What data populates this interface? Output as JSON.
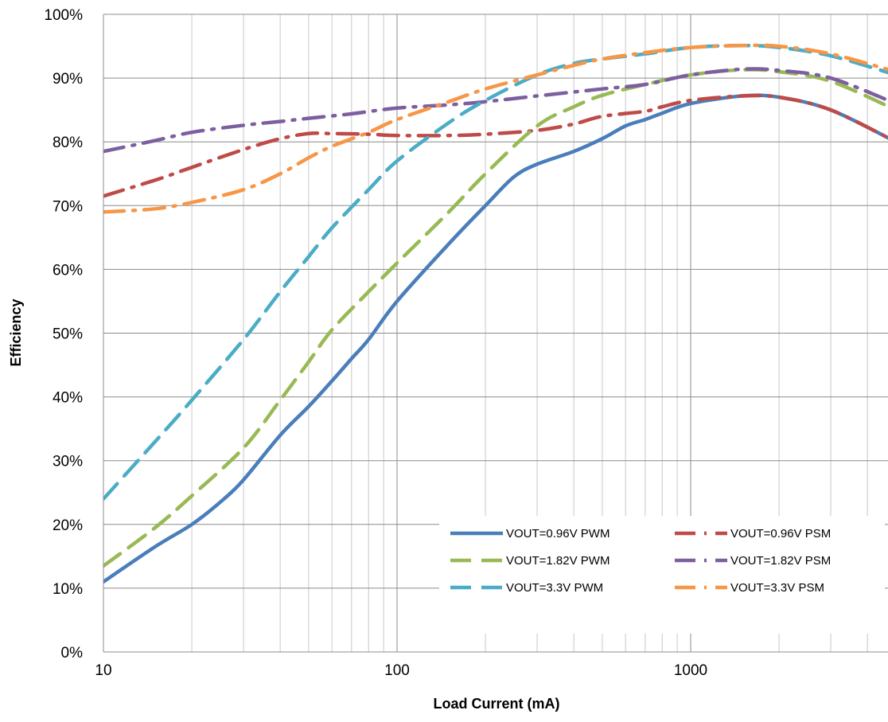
{
  "chart_data": {
    "type": "line",
    "title": "",
    "xlabel": "Load Current (mA)",
    "ylabel": "Efficiency",
    "x_scale": "log",
    "xlim": [
      10,
      5000
    ],
    "ylim": [
      0,
      100
    ],
    "grid": true,
    "legend_position": "bottom-right",
    "x_ticks": [
      "10",
      "100",
      "1000"
    ],
    "y_ticks": [
      "0%",
      "10%",
      "20%",
      "30%",
      "40%",
      "50%",
      "60%",
      "70%",
      "80%",
      "90%",
      "100%"
    ],
    "series": [
      {
        "name": "VOUT=0.96V PWM",
        "color": "#4a7ebb",
        "style": "solid",
        "x": [
          10,
          15,
          20,
          25,
          30,
          40,
          50,
          60,
          70,
          80,
          100,
          150,
          200,
          250,
          300,
          400,
          500,
          600,
          700,
          800,
          1000,
          1500,
          2000,
          3000,
          5000
        ],
        "y": [
          11,
          16.5,
          20,
          23.5,
          27,
          34,
          38.5,
          42.5,
          46,
          49,
          55,
          64,
          70,
          74.5,
          76.5,
          78.5,
          80.5,
          82.5,
          83.5,
          84.5,
          86,
          87.2,
          87,
          85,
          80
        ]
      },
      {
        "name": "VOUT=0.96V PSM",
        "color": "#be4b48",
        "style": "dash-dot",
        "x": [
          10,
          15,
          20,
          30,
          40,
          50,
          60,
          80,
          100,
          150,
          200,
          300,
          400,
          500,
          700,
          800,
          1000,
          1500,
          2000,
          3000,
          5000
        ],
        "y": [
          71.5,
          74,
          76,
          78.8,
          80.5,
          81.3,
          81.3,
          81.2,
          81,
          81,
          81.2,
          81.8,
          82.8,
          84,
          84.8,
          85.5,
          86.5,
          87.2,
          87,
          85,
          80
        ]
      },
      {
        "name": "VOUT=1.82V PWM",
        "color": "#98b954",
        "style": "dash",
        "x": [
          10,
          15,
          20,
          30,
          40,
          50,
          60,
          80,
          100,
          150,
          200,
          300,
          400,
          500,
          700,
          1000,
          1500,
          2000,
          3000,
          5000
        ],
        "y": [
          13.5,
          19.5,
          24.5,
          32,
          39.5,
          45.5,
          50.5,
          56.5,
          61,
          69,
          75,
          82.5,
          85.5,
          87.3,
          89,
          90.5,
          91.3,
          91,
          89.5,
          85
        ]
      },
      {
        "name": "VOUT=1.82V PSM",
        "color": "#7d5fa0",
        "style": "dash-dot",
        "x": [
          10,
          15,
          20,
          30,
          40,
          50,
          70,
          100,
          150,
          200,
          300,
          500,
          700,
          1000,
          1500,
          2000,
          3000,
          5000
        ],
        "y": [
          78.5,
          80.2,
          81.5,
          82.6,
          83.2,
          83.7,
          84.4,
          85.3,
          85.8,
          86.3,
          87.2,
          88.3,
          89,
          90.5,
          91.4,
          91.2,
          90,
          86
        ]
      },
      {
        "name": "VOUT=3.3V PWM",
        "color": "#4bacc6",
        "style": "dash",
        "x": [
          10,
          15,
          20,
          30,
          40,
          50,
          60,
          80,
          100,
          150,
          200,
          300,
          400,
          500,
          700,
          1000,
          1500,
          2000,
          3000,
          5000
        ],
        "y": [
          24,
          33,
          39.5,
          49,
          56.5,
          62,
          66.5,
          72.5,
          77,
          83,
          86.5,
          90.5,
          92.3,
          93,
          93.8,
          94.8,
          95.1,
          94.8,
          93.5,
          90.5
        ]
      },
      {
        "name": "VOUT=3.3V PSM",
        "color": "#f79646",
        "style": "dash-dot",
        "x": [
          10,
          15,
          20,
          30,
          40,
          50,
          60,
          80,
          100,
          150,
          200,
          300,
          400,
          500,
          700,
          1000,
          1500,
          2000,
          3000,
          5000
        ],
        "y": [
          69,
          69.5,
          70.5,
          72.5,
          75,
          77.5,
          79.3,
          81.5,
          83.5,
          86.3,
          88.3,
          90.5,
          92,
          93,
          94,
          94.8,
          95.1,
          95,
          93.8,
          91
        ]
      }
    ]
  }
}
